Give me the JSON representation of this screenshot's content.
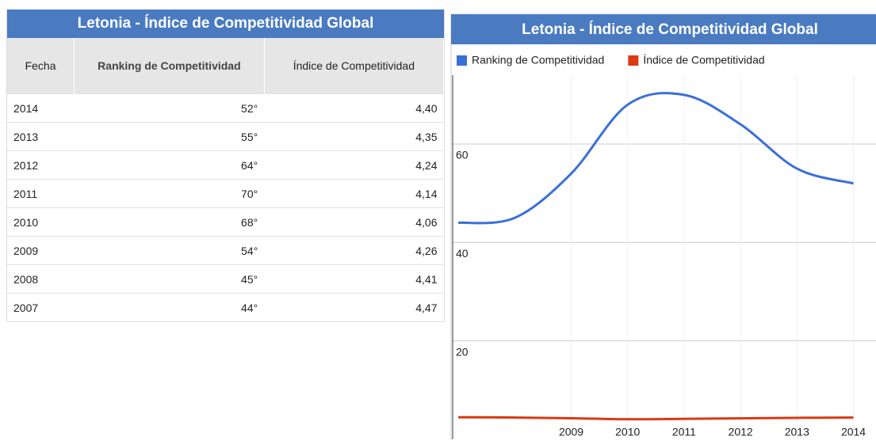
{
  "table": {
    "title": "Letonia - Índice de Competitividad Global",
    "columns": [
      "Fecha",
      "Ranking de Competitividad",
      "Índice de Competitividad"
    ],
    "rows": [
      [
        "2014",
        "52°",
        "4,40"
      ],
      [
        "2013",
        "55°",
        "4,35"
      ],
      [
        "2012",
        "64°",
        "4,24"
      ],
      [
        "2011",
        "70°",
        "4,14"
      ],
      [
        "2010",
        "68°",
        "4,06"
      ],
      [
        "2009",
        "54°",
        "4,26"
      ],
      [
        "2008",
        "45°",
        "4,41"
      ],
      [
        "2007",
        "44°",
        "4,47"
      ]
    ]
  },
  "chart_data": {
    "type": "line",
    "title": "Letonia - Índice de Competitividad Global",
    "x": [
      2007,
      2008,
      2009,
      2010,
      2011,
      2012,
      2013,
      2014
    ],
    "series": [
      {
        "name": "Ranking de Competitividad",
        "color": "#3a6fd8",
        "values": [
          44,
          45,
          54,
          68,
          70,
          64,
          55,
          52
        ]
      },
      {
        "name": "Índice de Competitividad",
        "color": "#dc3912",
        "values": [
          4.47,
          4.41,
          4.26,
          4.06,
          4.14,
          4.24,
          4.35,
          4.4
        ]
      }
    ],
    "xlim": [
      2006.9,
      2014.4
    ],
    "xticks": [
      2009,
      2010,
      2011,
      2012,
      2013,
      2014
    ],
    "ylim": [
      0,
      74
    ],
    "yticks": [
      20,
      40,
      60
    ],
    "grid": true,
    "legend": "top"
  }
}
